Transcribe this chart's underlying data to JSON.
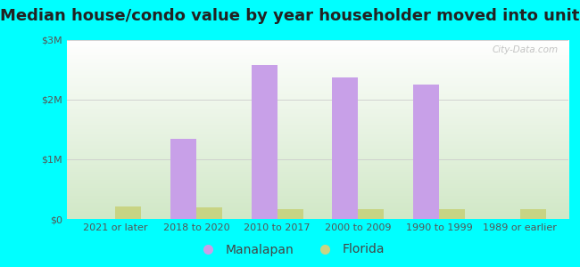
{
  "title": "Median house/condo value by year householder moved into unit",
  "categories": [
    "2021 or later",
    "2018 to 2020",
    "2010 to 2017",
    "2000 to 2009",
    "1990 to 1999",
    "1989 or earlier"
  ],
  "manalapan_values": [
    0,
    1350000,
    2580000,
    2380000,
    2260000,
    0
  ],
  "florida_values": [
    205000,
    195000,
    170000,
    160000,
    168000,
    158000
  ],
  "manalapan_color": "#c8a0e8",
  "florida_color": "#c8d484",
  "background_outer": "#00ffff",
  "ylim": [
    0,
    3000000
  ],
  "yticks": [
    0,
    1000000,
    2000000,
    3000000
  ],
  "ytick_labels": [
    "$0",
    "$1M",
    "$2M",
    "$3M"
  ],
  "bar_width": 0.32,
  "legend_manalapan": "Manalapan",
  "legend_florida": "Florida",
  "watermark": "City-Data.com",
  "title_fontsize": 13,
  "tick_fontsize": 8,
  "legend_fontsize": 10
}
